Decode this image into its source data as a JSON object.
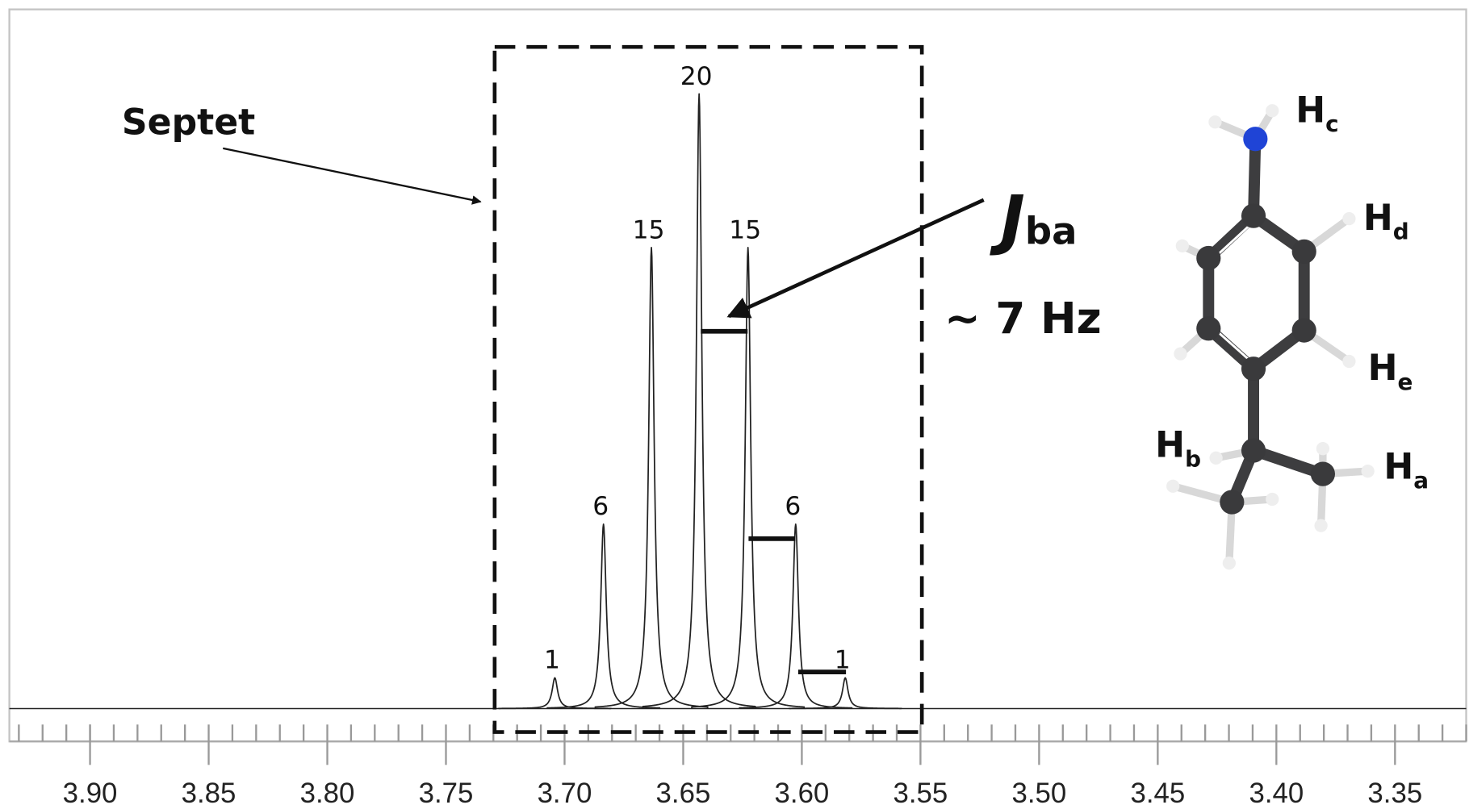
{
  "chart_data": {
    "type": "spectrum",
    "x": [
      3.7041,
      3.6836,
      3.6634,
      3.6433,
      3.6227,
      3.6026,
      3.5817
    ],
    "values": [
      1,
      6,
      15,
      20,
      15,
      6,
      1
    ],
    "color": "#222222",
    "xlim": [
      3.934,
      3.32
    ],
    "ylim": [
      -1.07,
      22.75
    ],
    "xticks": [
      {
        "value": 3.9,
        "label": "3.90"
      },
      3.85,
      {
        "value": 3.8,
        "label": "3.80"
      },
      3.75,
      {
        "value": 3.7,
        "label": "3.70"
      },
      3.65,
      {
        "value": 3.6,
        "label": "3.60"
      },
      3.55,
      {
        "value": 3.5,
        "label": "3.50"
      },
      3.45,
      {
        "value": 3.4,
        "label": "3.40"
      },
      3.35
    ],
    "annotations": {
      "septet": "Septet",
      "coupling": {
        "symbol": "J",
        "subscript": "ba"
      },
      "coupling_value": "~ 7 Hz",
      "atoms": [
        {
          "symbol": "H",
          "subscript": "c"
        },
        {
          "symbol": "H",
          "subscript": "d"
        },
        {
          "symbol": "H",
          "subscript": "e"
        },
        {
          "symbol": "H",
          "subscript": "b"
        },
        {
          "symbol": "H",
          "subscript": "a"
        }
      ]
    }
  }
}
